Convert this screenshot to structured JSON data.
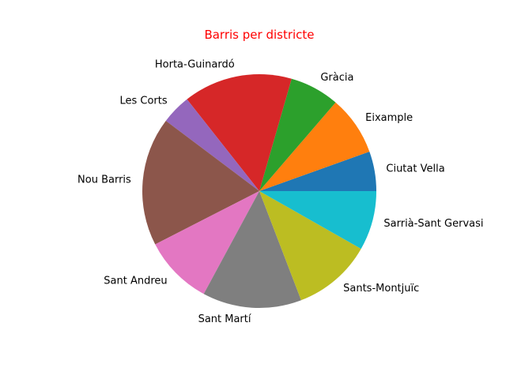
{
  "chart_data": {
    "type": "pie",
    "title": "Barris per districte",
    "title_color": "#ff0000",
    "start_angle_deg": 0,
    "direction": "counterclockwise",
    "slices": [
      {
        "label": "Ciutat Vella",
        "value": 4,
        "color": "#1f77b4"
      },
      {
        "label": "Eixample",
        "value": 6,
        "color": "#ff7f0e"
      },
      {
        "label": "Gràcia",
        "value": 5,
        "color": "#2ca02c"
      },
      {
        "label": "Horta-Guinardó",
        "value": 11,
        "color": "#d62728"
      },
      {
        "label": "Les Corts",
        "value": 3,
        "color": "#9467bd"
      },
      {
        "label": "Nou Barris",
        "value": 13,
        "color": "#8c564b"
      },
      {
        "label": "Sant Andreu",
        "value": 7,
        "color": "#e377c2"
      },
      {
        "label": "Sant Martí",
        "value": 10,
        "color": "#7f7f7f"
      },
      {
        "label": "Sants-Montjuïc",
        "value": 8,
        "color": "#bcbd22"
      },
      {
        "label": "Sarrià-Sant Gervasi",
        "value": 6,
        "color": "#17becf"
      }
    ]
  }
}
